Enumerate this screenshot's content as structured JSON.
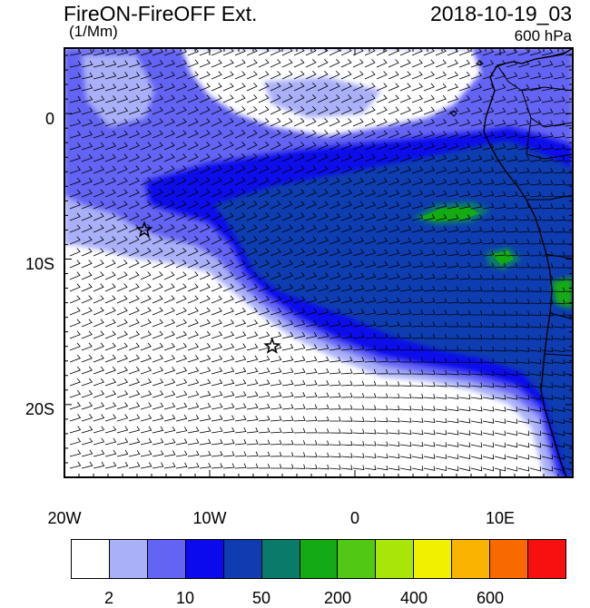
{
  "header": {
    "title": "FireON-FireOFF Ext.",
    "units": "(1/Mm)",
    "datetime": "2018-10-19_03",
    "level": "600 hPa"
  },
  "axes": {
    "y_ticks": [
      {
        "value": 0,
        "label": "0"
      },
      {
        "value": -10,
        "label": "10S"
      },
      {
        "value": -20,
        "label": "20S"
      }
    ],
    "x_ticks": [
      {
        "value": -20,
        "label": "20W"
      },
      {
        "value": -10,
        "label": "10W"
      },
      {
        "value": 0,
        "label": "0"
      },
      {
        "value": 10,
        "label": "10E"
      }
    ],
    "lon_range": [
      -20,
      15
    ],
    "lat_range": [
      -25,
      4.5
    ]
  },
  "markers": [
    {
      "name": "star-marker",
      "lon": -14.5,
      "lat": -8
    },
    {
      "name": "star-marker",
      "lon": -5.7,
      "lat": -16
    }
  ],
  "colorbar": {
    "colors": [
      "#ffffff",
      "#aab0f8",
      "#6464f4",
      "#0a0aec",
      "#0f3cb0",
      "#0a7a6a",
      "#14aa14",
      "#50c814",
      "#a8e60a",
      "#f0f000",
      "#f8b400",
      "#f86a00",
      "#f81010"
    ],
    "labels": [
      {
        "index": 1,
        "text": "2"
      },
      {
        "index": 3,
        "text": "10"
      },
      {
        "index": 5,
        "text": "50"
      },
      {
        "index": 7,
        "text": "200"
      },
      {
        "index": 9,
        "text": "400"
      },
      {
        "index": 11,
        "text": "600"
      }
    ]
  }
}
